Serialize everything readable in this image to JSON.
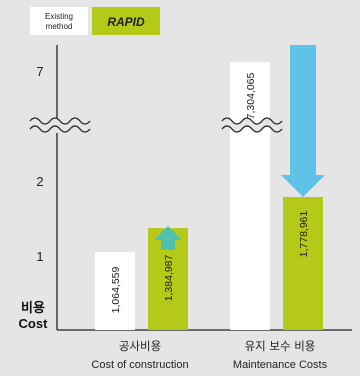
{
  "chart_data": {
    "type": "bar",
    "categories": [
      {
        "ko": "공사비용",
        "en": "Cost of construction"
      },
      {
        "ko": "유지 보수 비용",
        "en": "Maintenance Costs"
      }
    ],
    "series": [
      {
        "name": "Existing method",
        "values": [
          1064559,
          7304065
        ],
        "labels": [
          "1,064,559",
          "7,304,065"
        ],
        "color": "#ffffff"
      },
      {
        "name": "RAPID",
        "values": [
          1384987,
          1778961
        ],
        "labels": [
          "1,384,987",
          "1,778,961"
        ],
        "color": "#b5c918"
      }
    ],
    "y_ticks": [
      "1",
      "2",
      "7"
    ],
    "ylabel": {
      "ko": "비용",
      "en": "Cost"
    },
    "axis_break": true,
    "legend": {
      "existing_line1": "Existing",
      "existing_line2": "method",
      "rapid": "RAPID",
      "position": "top-left"
    },
    "arrow_color": "#5fc3e8"
  }
}
